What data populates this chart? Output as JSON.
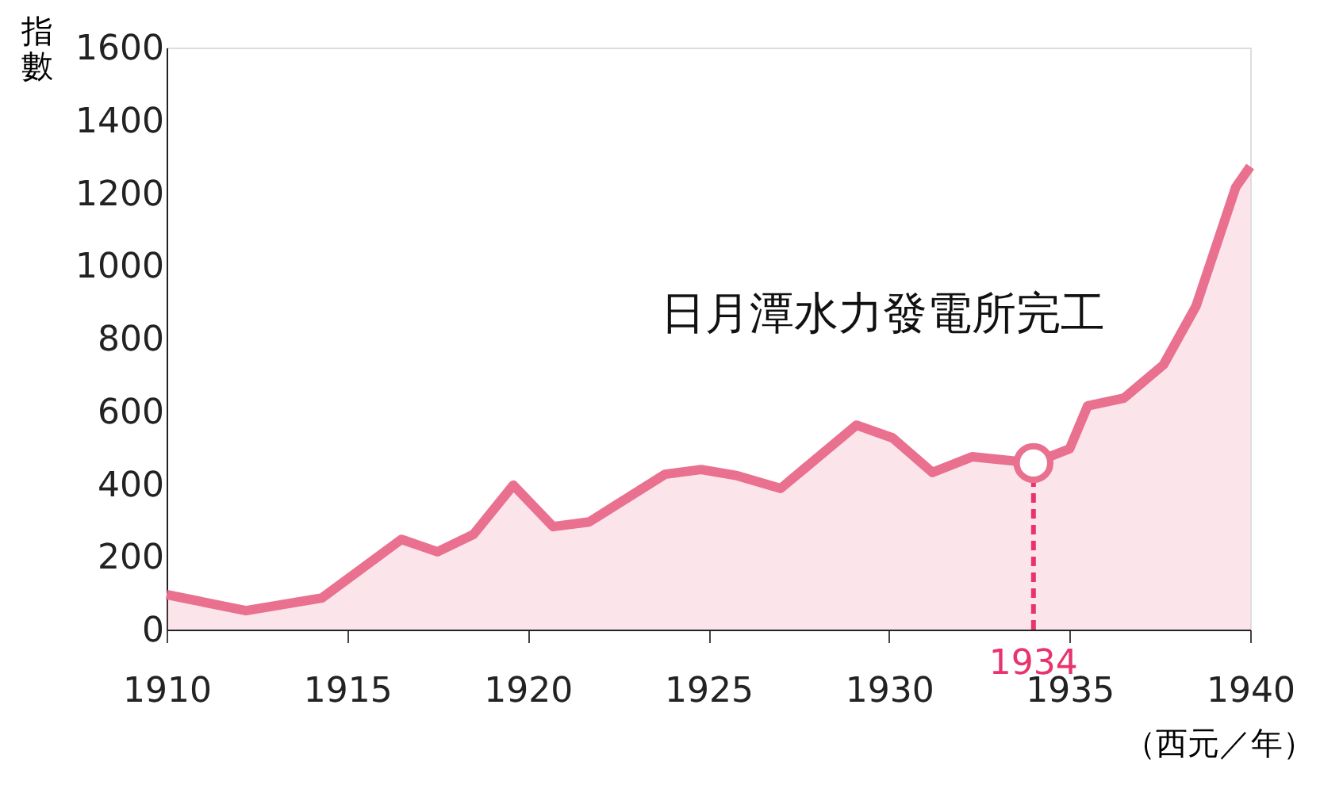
{
  "chart_data": {
    "type": "area",
    "xlabel": "（西元／年）",
    "ylabel": "指數",
    "x": [
      1910,
      1912.2,
      1914.3,
      1916.5,
      1917.5,
      1918.5,
      1919.6,
      1920.7,
      1921.7,
      1923.8,
      1924.8,
      1925.8,
      1927,
      1929.1,
      1930.1,
      1931.2,
      1932.3,
      1934,
      1935,
      1935.5,
      1936.5,
      1937.6,
      1938.5,
      1939.6,
      1940
    ],
    "series": [
      {
        "color": "#ea7090",
        "values": [
          96,
          52,
          87,
          248,
          214,
          262,
          397,
          283,
          296,
          427,
          440,
          423,
          388,
          562,
          527,
          432,
          475,
          458,
          497,
          615,
          636,
          728,
          889,
          1216,
          1273
        ]
      }
    ],
    "xlim": [
      1910,
      1940
    ],
    "xticks": [
      1910,
      1915,
      1920,
      1925,
      1930,
      1935,
      1940
    ],
    "ylim": [
      0,
      1600
    ],
    "yticks": [
      0,
      200,
      400,
      600,
      800,
      1000,
      1200,
      1400,
      1600
    ],
    "grid": false,
    "marker": "none",
    "ref_lines": [
      {
        "axis": "x",
        "value": 1934,
        "label": "1934",
        "color": "#e8336d",
        "line_style": "dashed"
      }
    ],
    "annotations": [
      {
        "text": "日月潭水力發電所完工",
        "x": 1934,
        "y": 458
      }
    ]
  }
}
